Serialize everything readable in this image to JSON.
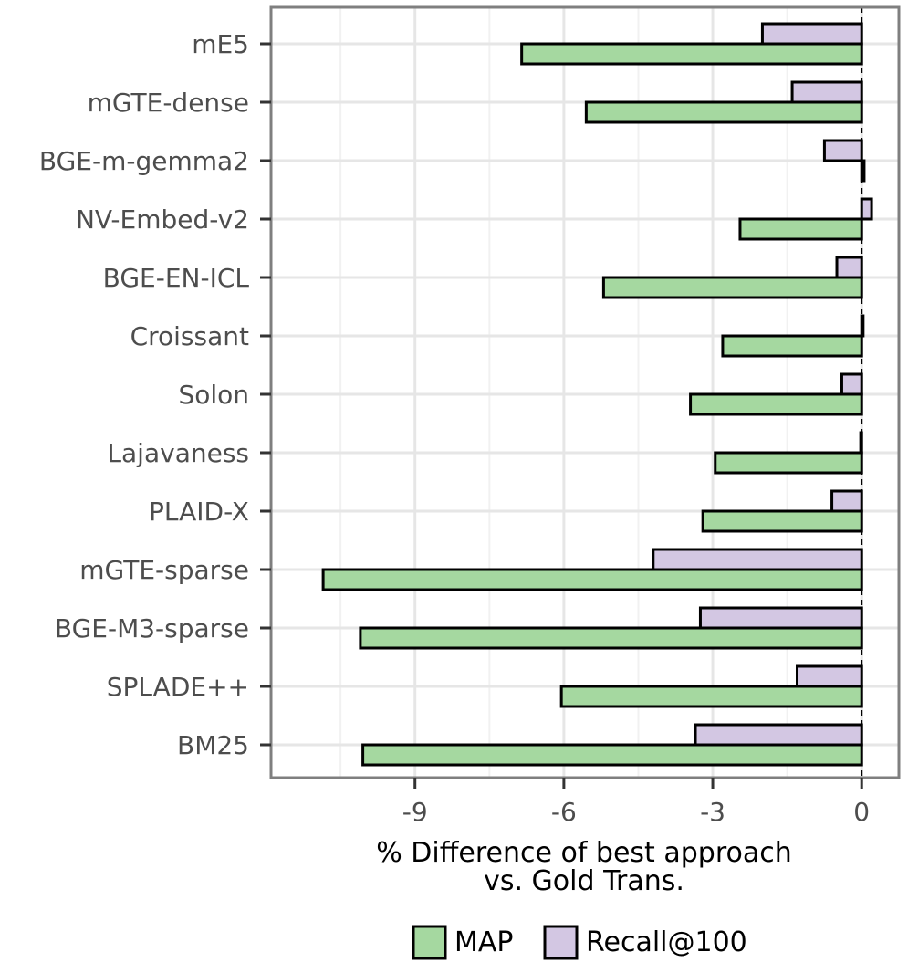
{
  "chart_data": {
    "type": "bar",
    "orientation": "horizontal",
    "categories": [
      "mE5",
      "mGTE-dense",
      "BGE-m-gemma2",
      "NV-Embed-v2",
      "BGE-EN-ICL",
      "Croissant",
      "Solon",
      "Lajavaness",
      "PLAID-X",
      "mGTE-sparse",
      "BGE-M3-sparse",
      "SPLADE++",
      "BM25"
    ],
    "series": [
      {
        "name": "MAP",
        "color": "#a5d8a0",
        "values": [
          -6.85,
          -5.55,
          0.05,
          -2.45,
          -5.2,
          -2.8,
          -3.45,
          -2.95,
          -3.2,
          -10.85,
          -10.1,
          -6.05,
          -10.05
        ]
      },
      {
        "name": "Recall@100",
        "color": "#d3c7e3",
        "values": [
          -2.0,
          -1.4,
          -0.75,
          0.2,
          -0.5,
          0.03,
          -0.4,
          -0.02,
          -0.6,
          -4.2,
          -3.25,
          -1.3,
          -3.35
        ]
      }
    ],
    "xticks": [
      -9,
      -6,
      -3,
      0
    ],
    "xtick_labels": [
      "-9",
      "-6",
      "-3",
      "0"
    ],
    "xlim": [
      -11.9,
      0.75
    ],
    "xlabel_line1": "% Difference of best approach",
    "xlabel_line2": "vs. Gold Trans.",
    "ylabel": "",
    "reference_line": 0,
    "grid": true,
    "legend_position": "bottom"
  }
}
